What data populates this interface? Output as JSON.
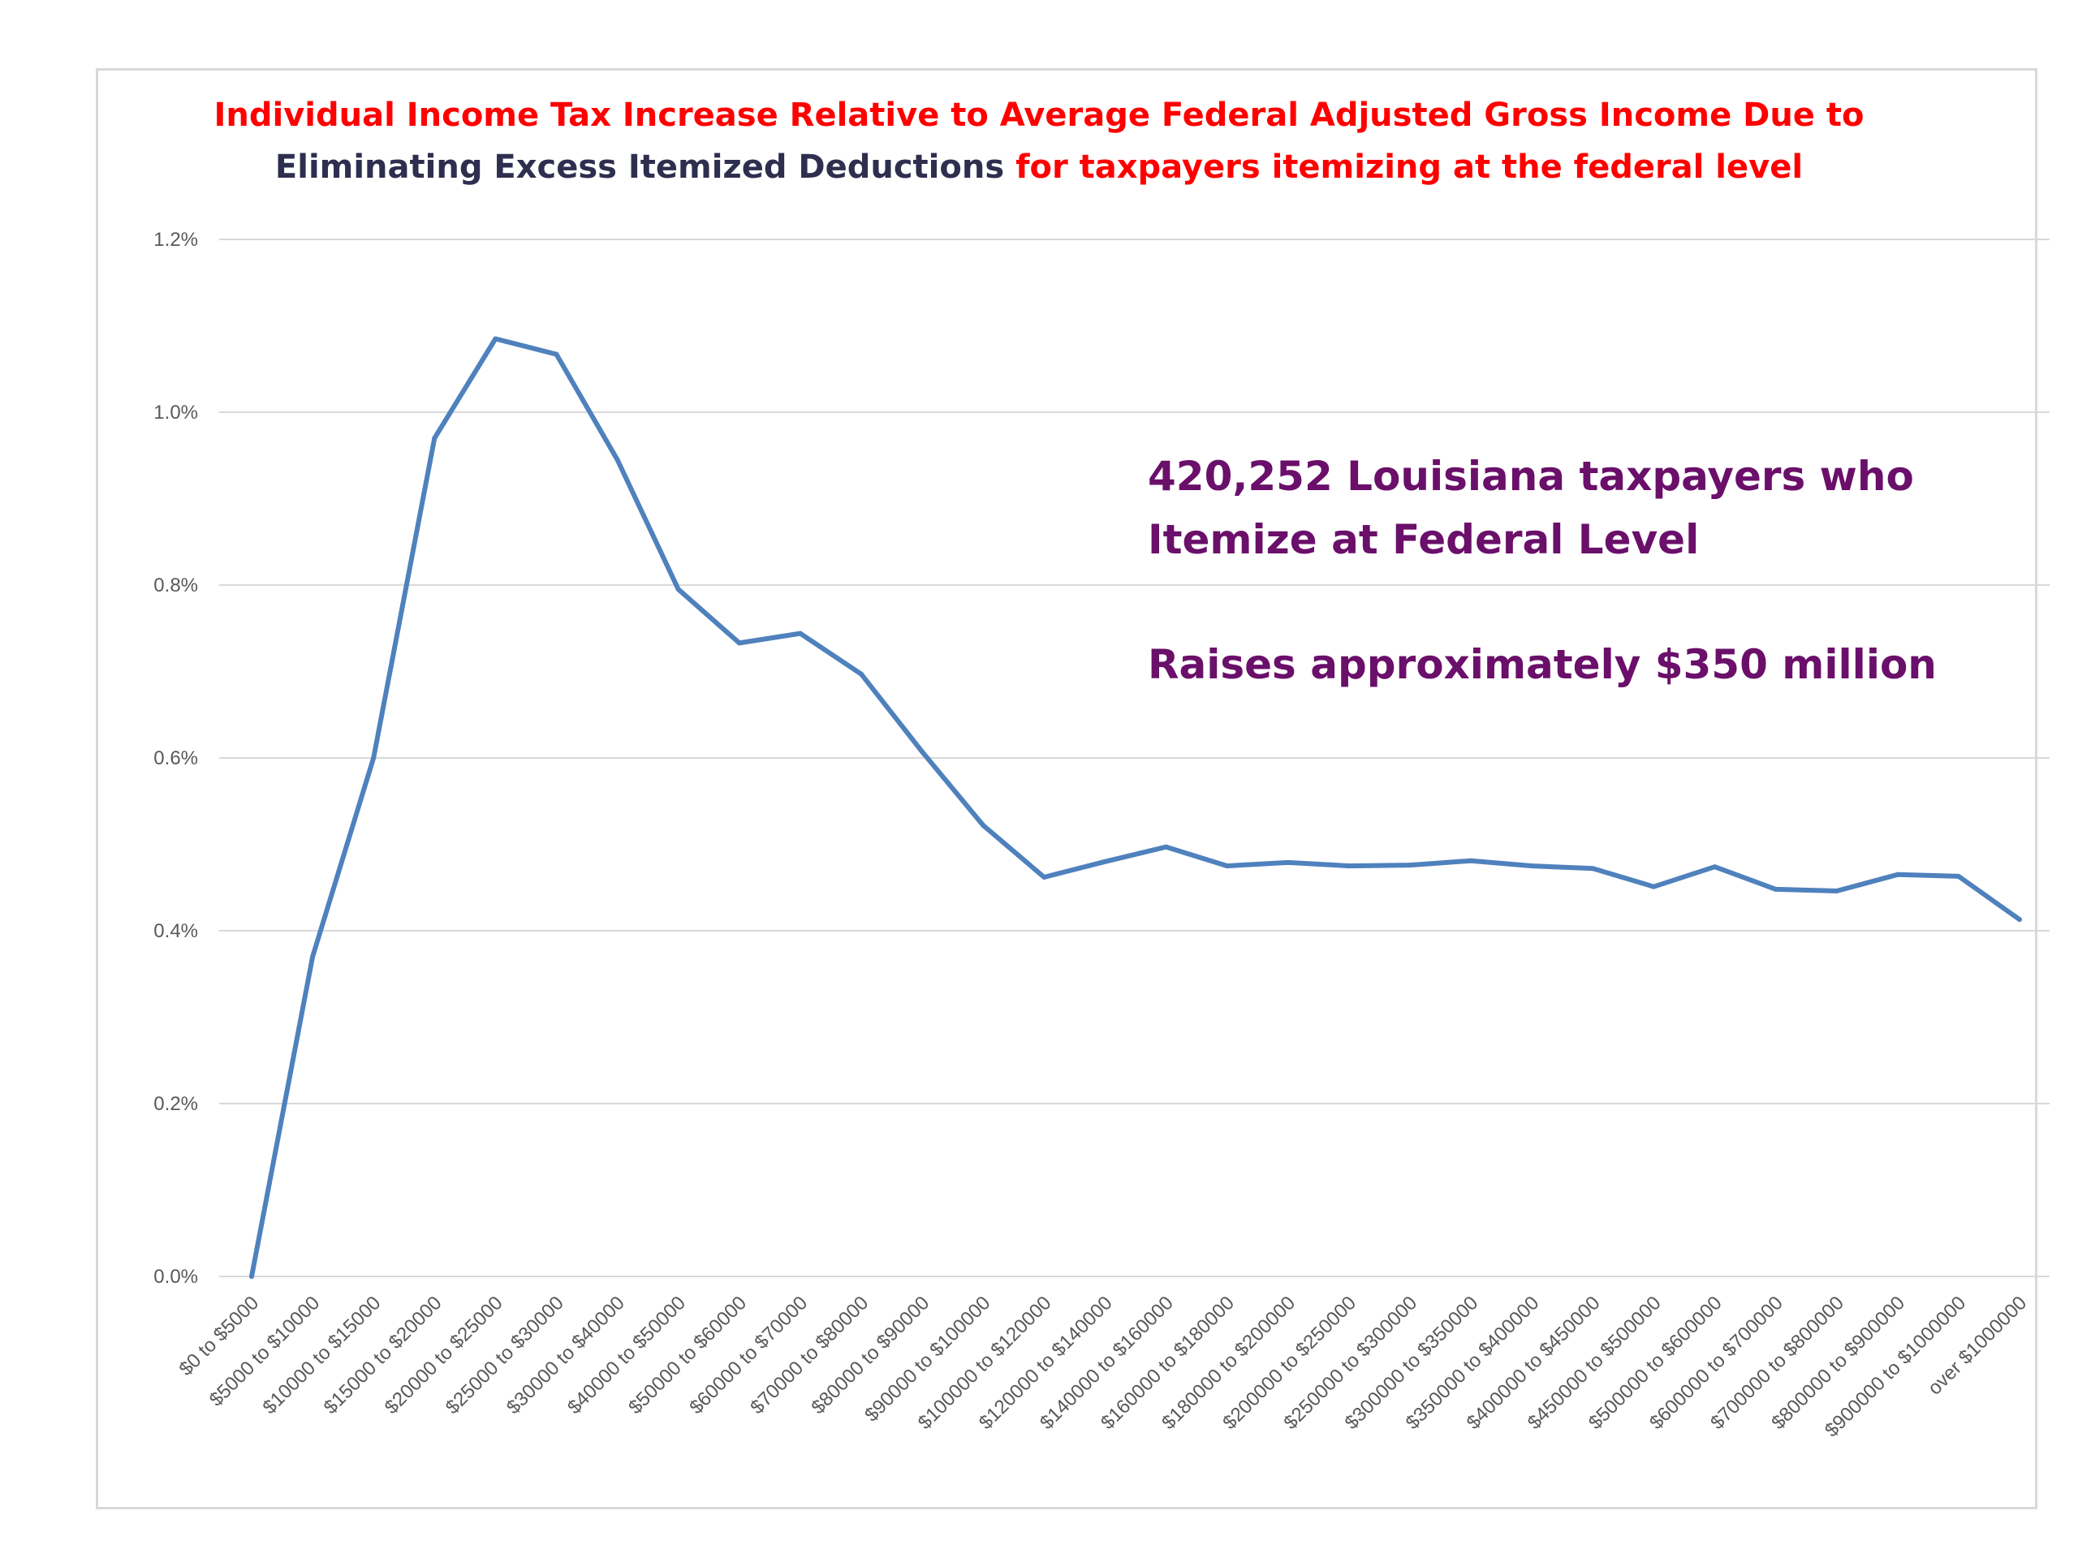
{
  "chart_data": {
    "type": "line",
    "title_parts": [
      {
        "text": "Individual Income Tax Increase Relative to Average Federal Adjusted Gross Income Due to",
        "color": "#ff0000",
        "break_after": true
      },
      {
        "text": "Eliminating Excess Itemized Deductions",
        "color": "#2e2e4f",
        "break_after": false
      },
      {
        "text": " for taxpayers itemizing at the federal level",
        "color": "#ff0000",
        "break_after": false
      }
    ],
    "categories": [
      "$0 to $5000",
      "$5000 to $10000",
      "$10000 to $15000",
      "$15000 to $20000",
      "$20000 to $25000",
      "$25000 to $30000",
      "$30000 to $40000",
      "$40000 to $50000",
      "$50000 to $60000",
      "$60000 to $70000",
      "$70000 to $80000",
      "$80000 to $90000",
      "$90000 to $100000",
      "$100000 to $120000",
      "$120000 to $140000",
      "$140000 to $160000",
      "$160000 to $180000",
      "$180000 to $200000",
      "$200000 to $250000",
      "$250000 to $300000",
      "$300000 to $350000",
      "$350000 to $400000",
      "$400000 to $450000",
      "$450000 to $500000",
      "$500000 to $600000",
      "$600000 to $700000",
      "$700000 to $800000",
      "$800000 to $900000",
      "$900000 to $1000000",
      "over $1000000"
    ],
    "series": [
      {
        "color": "#4f81bd",
        "values": [
          0.0,
          0.0037,
          0.006,
          0.0097,
          0.01085,
          0.01067,
          0.00945,
          0.00795,
          0.00733,
          0.00744,
          0.00697,
          0.00607,
          0.00522,
          0.00462,
          0.0048,
          0.00497,
          0.00475,
          0.00479,
          0.00475,
          0.00476,
          0.00481,
          0.00475,
          0.00472,
          0.00451,
          0.00474,
          0.00448,
          0.00446,
          0.00465,
          0.00463,
          0.00413
        ]
      }
    ],
    "ylim": [
      0,
      0.012
    ],
    "yticks": [
      0.0,
      0.002,
      0.004,
      0.006,
      0.008,
      0.01,
      0.012
    ],
    "ytick_labels": [
      "0.0%",
      "0.2%",
      "0.4%",
      "0.6%",
      "0.8%",
      "1.0%",
      "1.2%"
    ],
    "grid": true,
    "legend": "none",
    "annotations": [
      "420,252 Louisiana taxpayers who",
      "Itemize at Federal Level",
      "Raises approximately $350 million"
    ],
    "colors": {
      "gridline": "#d9d9d9",
      "tick_text": "#595959",
      "annotation": "#6a0f6a"
    }
  }
}
